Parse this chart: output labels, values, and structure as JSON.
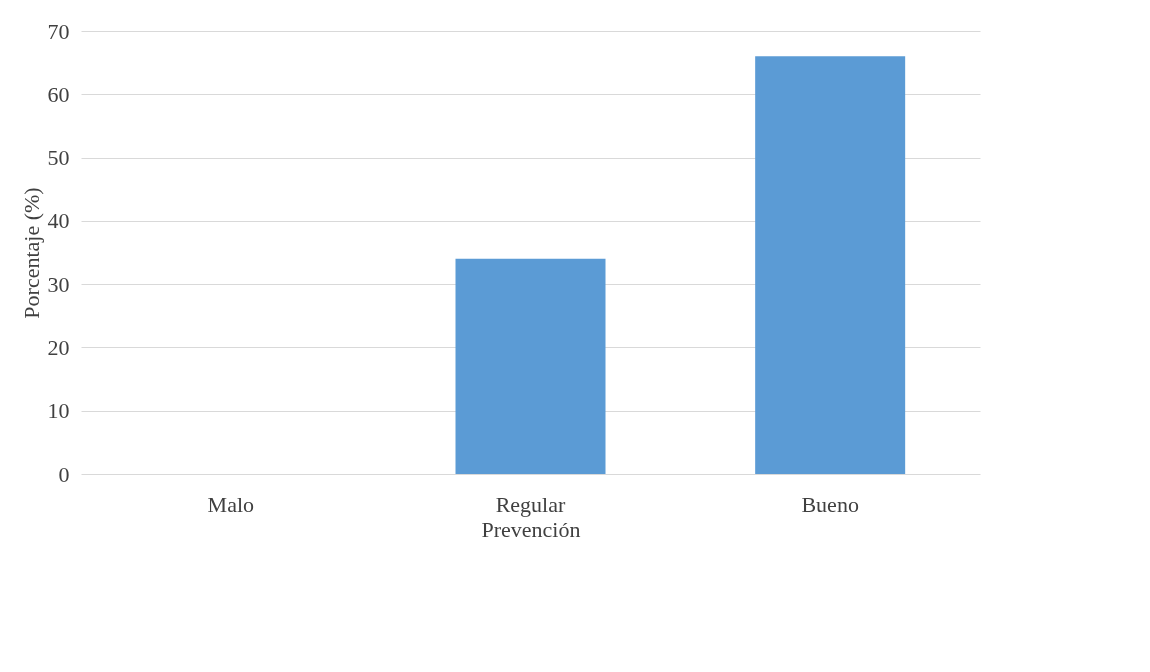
{
  "chart_data": {
    "type": "bar",
    "xlabel": "Prevención",
    "ylabel": "Porcentaje (%)",
    "categories": [
      "Malo",
      "Regular",
      "Bueno"
    ],
    "values": [
      0,
      34,
      66
    ],
    "color": "#5b9bd5",
    "ylim": [
      0,
      70
    ],
    "yticks": [
      0,
      10,
      20,
      30,
      40,
      50,
      60,
      70
    ],
    "grid": "y"
  }
}
